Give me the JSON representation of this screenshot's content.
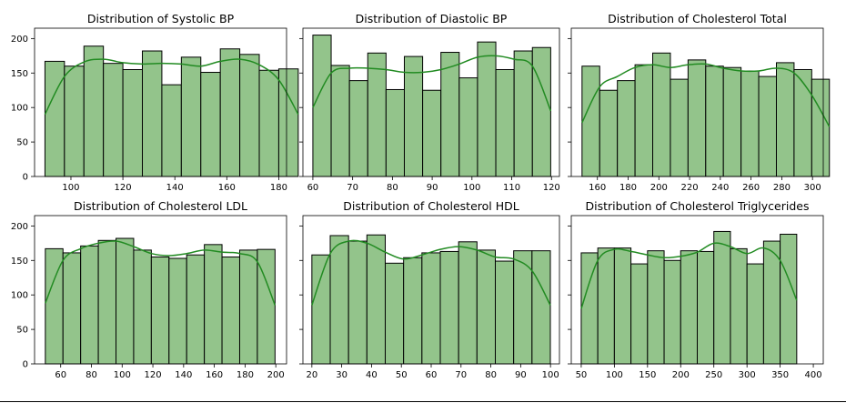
{
  "style": {
    "bar_fill": "#93c48b",
    "bar_edge": "#000000",
    "kde_color": "#228b22"
  },
  "chart_data": [
    {
      "type": "bar",
      "title": "Distribution of Systolic BP",
      "bin_start": 90,
      "bin_width": 7.5,
      "values": [
        167,
        160,
        189,
        164,
        155,
        182,
        133,
        173,
        151,
        185,
        177,
        154,
        156
      ],
      "xlim": [
        86,
        183
      ],
      "ylim": [
        0,
        215
      ],
      "xticks": [
        100,
        120,
        140,
        160,
        180
      ],
      "yticks": [
        0,
        50,
        100,
        150,
        200
      ],
      "kde_y": [
        90,
        145,
        166,
        170,
        165,
        163,
        164,
        163,
        160,
        167,
        170,
        162,
        140,
        90
      ]
    },
    {
      "type": "bar",
      "title": "Distribution of Diastolic BP",
      "bin_start": 60,
      "bin_width": 4.6,
      "values": [
        205,
        161,
        139,
        179,
        126,
        174,
        125,
        180,
        143,
        195,
        155,
        182,
        187
      ],
      "xlim": [
        57.5,
        122
      ],
      "ylim": [
        0,
        215
      ],
      "xticks": [
        60,
        70,
        80,
        90,
        100,
        110,
        120
      ],
      "yticks": [
        0,
        50,
        100,
        150,
        200
      ],
      "kde_y": [
        100,
        150,
        157,
        157,
        155,
        151,
        151,
        155,
        163,
        173,
        175,
        170,
        160,
        95
      ]
    },
    {
      "type": "bar",
      "title": "Distribution of Cholesterol Total",
      "bin_start": 150,
      "bin_width": 11.5,
      "values": [
        160,
        125,
        139,
        162,
        179,
        141,
        169,
        160,
        158,
        153,
        145,
        165,
        155,
        141
      ],
      "xlim": [
        143,
        307
      ],
      "ylim": [
        0,
        215
      ],
      "xticks": [
        160,
        180,
        200,
        220,
        240,
        260,
        280,
        300
      ],
      "yticks": [
        0,
        50,
        100,
        150,
        200
      ],
      "kde_y": [
        78,
        130,
        145,
        158,
        162,
        158,
        162,
        163,
        157,
        153,
        153,
        157,
        150,
        118,
        72
      ]
    },
    {
      "type": "bar",
      "title": "Distribution of Cholesterol LDL",
      "bin_start": 50,
      "bin_width": 11.5,
      "values": [
        167,
        161,
        171,
        179,
        182,
        165,
        155,
        153,
        158,
        173,
        155,
        165,
        166
      ],
      "xlim": [
        43,
        207
      ],
      "ylim": [
        0,
        215
      ],
      "xticks": [
        60,
        80,
        100,
        120,
        140,
        160,
        180,
        200
      ],
      "yticks": [
        0,
        50,
        100,
        150,
        200
      ],
      "kde_y": [
        88,
        150,
        167,
        175,
        178,
        170,
        160,
        157,
        160,
        165,
        162,
        160,
        148,
        85
      ]
    },
    {
      "type": "bar",
      "title": "Distribution of Cholesterol HDL",
      "bin_start": 20,
      "bin_width": 6.15,
      "values": [
        158,
        186,
        178,
        187,
        146,
        154,
        161,
        163,
        177,
        165,
        149,
        164,
        164
      ],
      "xlim": [
        17,
        103
      ],
      "ylim": [
        0,
        215
      ],
      "xticks": [
        20,
        30,
        40,
        50,
        60,
        70,
        80,
        90,
        100
      ],
      "yticks": [
        0,
        50,
        100,
        150,
        200
      ],
      "kde_y": [
        85,
        160,
        178,
        175,
        162,
        152,
        158,
        166,
        170,
        165,
        155,
        152,
        135,
        85
      ]
    },
    {
      "type": "bar",
      "title": "Distribution of Cholesterol Triglycerides",
      "bin_start": 50,
      "bin_width": 25,
      "values": [
        161,
        168,
        168,
        145,
        164,
        150,
        164,
        163,
        192,
        167,
        145,
        178,
        188
      ],
      "xlim": [
        35,
        415
      ],
      "ylim": [
        0,
        215
      ],
      "xticks": [
        50,
        100,
        150,
        200,
        250,
        300,
        350,
        400
      ],
      "yticks": [
        0,
        50,
        100,
        150,
        200
      ],
      "kde_y": [
        80,
        150,
        166,
        163,
        158,
        154,
        156,
        162,
        175,
        170,
        160,
        168,
        150,
        92
      ]
    }
  ]
}
